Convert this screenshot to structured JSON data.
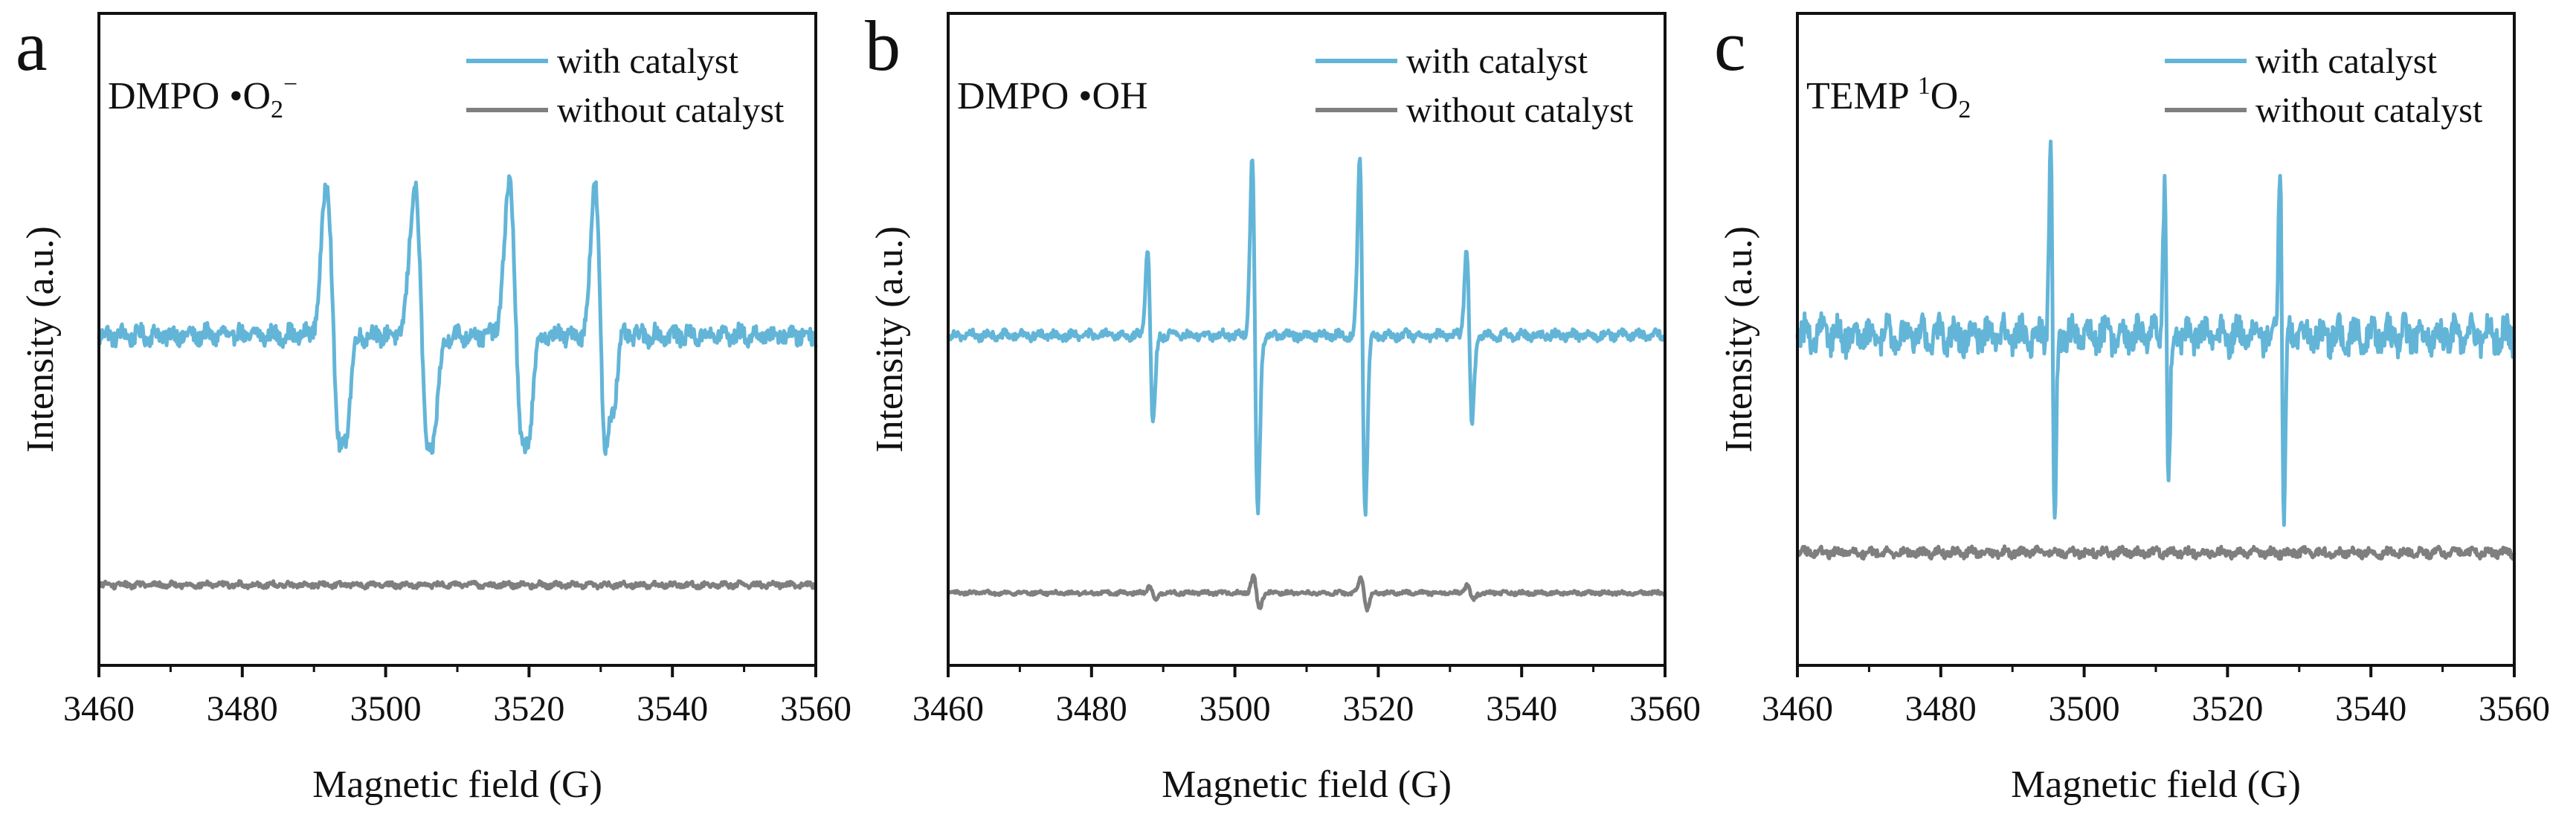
{
  "chart_data": [
    {
      "type": "line",
      "panel_label": "a",
      "probe": "DMPO",
      "radical_dot": "•",
      "radical_main": "O",
      "radical_sub": "2",
      "radical_sup": "−",
      "xlabel": "Magnetic field (G)",
      "ylabel": "Intensity (a.u.)",
      "xlim": [
        3460,
        3560
      ],
      "xticks": [
        "3460",
        "3480",
        "3500",
        "3520",
        "3540",
        "3560"
      ],
      "legend_position": "top-right",
      "series": [
        {
          "name": "with catalyst",
          "color": "#63b5d8",
          "baseline": 0.0,
          "noise": 0.05,
          "peaks": [
            {
              "center": 3492.7,
              "amplitude": 0.95,
              "width": 1.3,
              "shape": "wide"
            },
            {
              "center": 3505.0,
              "amplitude": 0.95,
              "width": 1.3,
              "shape": "wide"
            },
            {
              "center": 3518.2,
              "amplitude": 0.95,
              "width": 1.3,
              "shape": "wide"
            },
            {
              "center": 3530.0,
              "amplitude": 0.95,
              "width": 1.1,
              "shape": "wide"
            }
          ]
        },
        {
          "name": "without catalyst",
          "color": "#7f7f7f",
          "baseline": -1.55,
          "noise": 0.015,
          "peaks": []
        }
      ]
    },
    {
      "type": "line",
      "panel_label": "b",
      "probe": "DMPO",
      "radical_dot": "•",
      "radical_main": "OH",
      "radical_sub": "",
      "radical_sup": "",
      "xlabel": "Magnetic field (G)",
      "ylabel": "Intensity (a.u.)",
      "xlim": [
        3460,
        3560
      ],
      "xticks": [
        "3460",
        "3480",
        "3500",
        "3520",
        "3540",
        "3560"
      ],
      "legend_position": "top-right",
      "series": [
        {
          "name": "with catalyst",
          "color": "#63b5d8",
          "baseline": 0.0,
          "noise": 0.025,
          "peaks": [
            {
              "center": 3488.2,
              "amplitude": 0.55,
              "width": 0.55,
              "shape": "sharp"
            },
            {
              "center": 3502.8,
              "amplitude": 1.1,
              "width": 0.55,
              "shape": "sharp"
            },
            {
              "center": 3517.8,
              "amplitude": 1.1,
              "width": 0.55,
              "shape": "sharp"
            },
            {
              "center": 3532.7,
              "amplitude": 0.55,
              "width": 0.55,
              "shape": "sharp"
            }
          ]
        },
        {
          "name": "without catalyst",
          "color": "#7f7f7f",
          "baseline": -1.6,
          "noise": 0.01,
          "peaks": [
            {
              "center": 3488.5,
              "amplitude": 0.05,
              "width": 0.6,
              "shape": "sharp"
            },
            {
              "center": 3503.0,
              "amplitude": 0.1,
              "width": 0.6,
              "shape": "sharp"
            },
            {
              "center": 3518.0,
              "amplitude": 0.1,
              "width": 0.6,
              "shape": "sharp"
            },
            {
              "center": 3532.8,
              "amplitude": 0.05,
              "width": 0.6,
              "shape": "sharp"
            }
          ]
        }
      ]
    },
    {
      "type": "line",
      "panel_label": "c",
      "probe": "TEMP",
      "radical_dot": "",
      "radical_main": "O",
      "radical_sub": "2",
      "radical_sup": "",
      "radical_pre_sup": "1",
      "xlabel": "Magnetic field (G)",
      "ylabel": "Intensity (a.u.)",
      "xlim": [
        3460,
        3560
      ],
      "xticks": [
        "3460",
        "3480",
        "3500",
        "3520",
        "3540",
        "3560"
      ],
      "legend_position": "top-right",
      "series": [
        {
          "name": "with catalyst",
          "color": "#63b5d8",
          "baseline": 0.0,
          "noise": 0.09,
          "peaks": [
            {
              "center": 3495.6,
              "amplitude": 1.2,
              "width": 0.4,
              "shape": "sharp"
            },
            {
              "center": 3511.5,
              "amplitude": 0.95,
              "width": 0.4,
              "shape": "sharp"
            },
            {
              "center": 3527.6,
              "amplitude": 1.1,
              "width": 0.4,
              "shape": "sharp"
            }
          ]
        },
        {
          "name": "without catalyst",
          "color": "#7f7f7f",
          "baseline": -1.35,
          "noise": 0.025,
          "peaks": []
        }
      ]
    }
  ]
}
